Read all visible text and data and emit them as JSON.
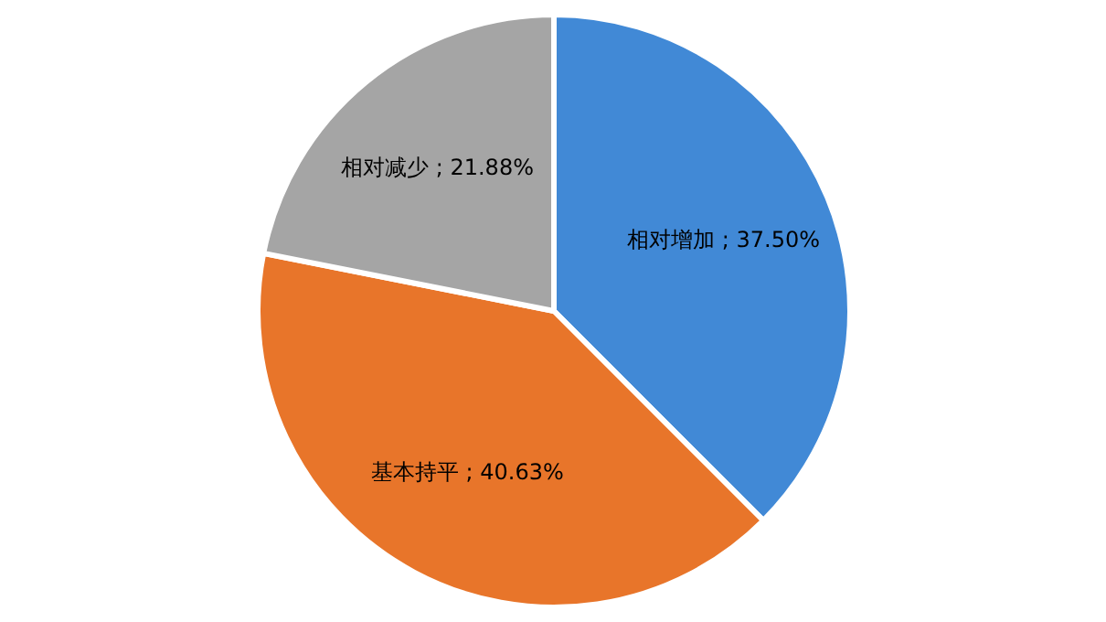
{
  "chart_data": {
    "type": "pie",
    "categories": [
      "相对增加",
      "基本持平",
      "相对减少"
    ],
    "values": [
      37.5,
      40.63,
      21.88
    ],
    "value_labels": [
      "37.50%",
      "40.63%",
      "21.88%"
    ],
    "colors": [
      "#4189d6",
      "#e8752a",
      "#a5a5a5"
    ]
  }
}
